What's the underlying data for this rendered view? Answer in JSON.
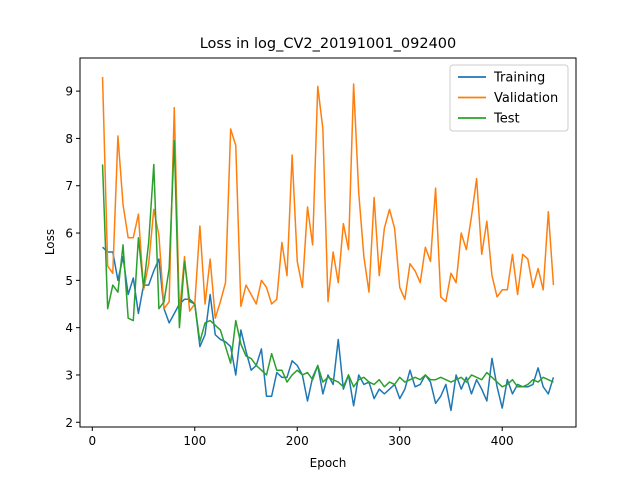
{
  "chart_data": {
    "type": "line",
    "title": "Loss in log_CV2_20191001_092400",
    "xlabel": "Epoch",
    "ylabel": "Loss",
    "xlim": [
      -12,
      472
    ],
    "ylim": [
      1.9,
      9.7
    ],
    "xticks": [
      0,
      100,
      200,
      300,
      400
    ],
    "yticks": [
      2,
      3,
      4,
      5,
      6,
      7,
      8,
      9
    ],
    "grid": false,
    "legend": "top-right",
    "x": [
      10,
      15,
      20,
      25,
      30,
      35,
      40,
      45,
      50,
      55,
      60,
      65,
      70,
      75,
      80,
      85,
      90,
      95,
      100,
      105,
      110,
      115,
      120,
      125,
      130,
      135,
      140,
      145,
      150,
      155,
      160,
      165,
      170,
      175,
      180,
      185,
      190,
      195,
      200,
      205,
      210,
      215,
      220,
      225,
      230,
      235,
      240,
      245,
      250,
      255,
      260,
      265,
      270,
      275,
      280,
      285,
      290,
      295,
      300,
      305,
      310,
      315,
      320,
      325,
      330,
      335,
      340,
      345,
      350,
      355,
      360,
      365,
      370,
      375,
      380,
      385,
      390,
      395,
      400,
      405,
      410,
      415,
      420,
      425,
      430,
      435,
      440,
      445,
      450
    ],
    "series": [
      {
        "name": "Training",
        "color": "#1f77b4",
        "values": [
          5.7,
          5.6,
          5.6,
          5.0,
          5.5,
          4.7,
          5.05,
          4.3,
          4.9,
          4.9,
          5.2,
          5.45,
          4.4,
          4.1,
          4.3,
          4.5,
          4.6,
          4.6,
          4.5,
          3.6,
          3.85,
          4.7,
          3.85,
          3.75,
          3.7,
          3.6,
          3.0,
          3.95,
          3.5,
          3.1,
          3.2,
          3.55,
          2.55,
          2.55,
          3.05,
          2.95,
          2.95,
          3.3,
          3.2,
          3.0,
          2.45,
          2.95,
          3.2,
          2.6,
          3.0,
          2.8,
          3.75,
          2.7,
          3.0,
          2.35,
          3.0,
          2.8,
          2.85,
          2.5,
          2.7,
          2.6,
          2.7,
          2.8,
          2.5,
          2.7,
          3.1,
          2.75,
          2.8,
          3.0,
          2.85,
          2.4,
          2.55,
          2.8,
          2.25,
          3.0,
          2.7,
          2.95,
          2.6,
          2.9,
          2.7,
          2.45,
          3.35,
          2.75,
          2.3,
          2.9,
          2.6,
          2.8,
          2.75,
          2.75,
          2.8,
          3.15,
          2.75,
          2.6,
          2.95
        ]
      },
      {
        "name": "Validation",
        "color": "#ff7f0e",
        "values": [
          9.3,
          5.3,
          5.15,
          8.05,
          6.6,
          5.9,
          5.9,
          6.4,
          4.8,
          5.35,
          6.5,
          5.95,
          4.4,
          4.55,
          8.65,
          4.3,
          5.5,
          4.35,
          4.5,
          6.15,
          4.5,
          5.45,
          4.2,
          4.55,
          4.95,
          8.2,
          7.85,
          4.45,
          4.9,
          4.7,
          4.5,
          5.0,
          4.85,
          4.5,
          4.6,
          5.8,
          5.1,
          7.65,
          5.4,
          4.85,
          6.55,
          5.75,
          9.1,
          8.2,
          4.55,
          5.6,
          4.95,
          6.2,
          5.65,
          9.15,
          6.85,
          5.5,
          4.75,
          6.75,
          5.1,
          6.1,
          6.5,
          6.1,
          4.85,
          4.6,
          5.35,
          5.2,
          4.95,
          5.7,
          5.4,
          6.95,
          4.65,
          4.55,
          5.15,
          4.95,
          6.0,
          5.65,
          6.35,
          7.15,
          5.55,
          6.25,
          5.1,
          4.65,
          4.8,
          4.8,
          5.55,
          4.7,
          5.55,
          5.45,
          4.85,
          5.25,
          4.8,
          6.45,
          4.9
        ]
      },
      {
        "name": "Test",
        "color": "#2ca02c",
        "values": [
          7.45,
          4.4,
          4.9,
          4.75,
          5.75,
          4.2,
          4.15,
          5.9,
          4.85,
          5.8,
          7.45,
          4.4,
          4.55,
          5.25,
          7.95,
          4.0,
          5.4,
          4.55,
          4.5,
          3.7,
          4.1,
          4.15,
          4.05,
          3.95,
          3.6,
          3.25,
          4.15,
          3.65,
          3.4,
          3.35,
          3.2,
          3.1,
          3.0,
          3.45,
          3.1,
          3.1,
          2.85,
          3.0,
          3.1,
          3.0,
          3.05,
          2.9,
          3.2,
          2.85,
          2.95,
          2.9,
          2.85,
          2.75,
          3.0,
          2.75,
          2.9,
          2.95,
          2.85,
          2.8,
          2.9,
          2.75,
          2.85,
          2.8,
          2.95,
          2.85,
          2.9,
          2.95,
          2.9,
          3.0,
          2.9,
          2.9,
          2.95,
          2.9,
          2.85,
          2.9,
          2.95,
          2.85,
          3.0,
          2.95,
          2.9,
          3.05,
          2.95,
          2.85,
          2.75,
          2.8,
          2.9,
          2.75,
          2.75,
          2.8,
          2.9,
          2.85,
          2.95,
          2.9,
          2.85
        ]
      }
    ]
  }
}
